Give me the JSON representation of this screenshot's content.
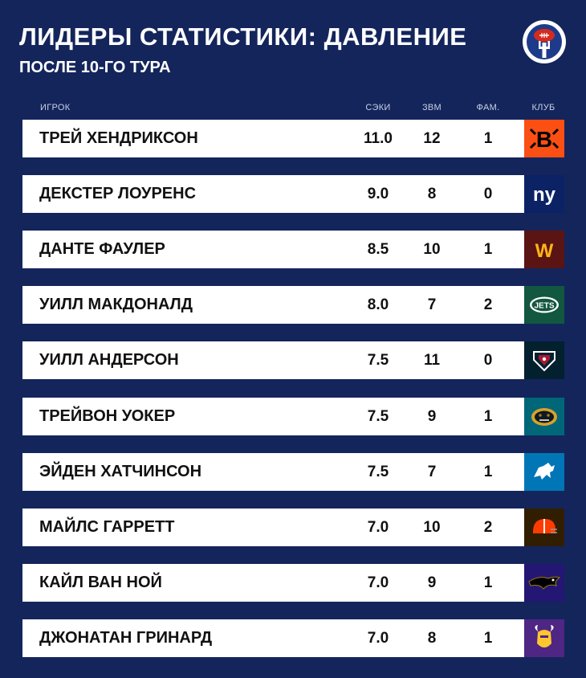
{
  "title": "ЛИДЕРЫ СТАТИСТИКИ: ДАВЛЕНИЕ",
  "subtitle": "ПОСЛЕ 10-ГО ТУРА",
  "brand_icon": "football-fork-logo",
  "colors": {
    "background": "#14255c",
    "row_background": "#ffffff",
    "header_text": "#c9d0e6"
  },
  "chart_data": {
    "type": "table",
    "columns": [
      "ИГРОК",
      "СЭКИ",
      "ЗВМ",
      "ФАМ.",
      "КЛУБ"
    ],
    "rows": [
      {
        "player": "ТРЕЙ ХЕНДРИКСОН",
        "sacks": "11.0",
        "qb_hits": "12",
        "forced_fumbles": "1",
        "team_icon": "bengals-logo",
        "team_color": "#fb4f14"
      },
      {
        "player": "ДЕКСТЕР ЛОУРЕНС",
        "sacks": "9.0",
        "qb_hits": "8",
        "forced_fumbles": "0",
        "team_icon": "giants-logo",
        "team_color": "#0b2265"
      },
      {
        "player": "ДАНТЕ ФАУЛЕР",
        "sacks": "8.5",
        "qb_hits": "10",
        "forced_fumbles": "1",
        "team_icon": "commanders-logo",
        "team_color": "#5a1414"
      },
      {
        "player": "УИЛЛ МАКДОНАЛД",
        "sacks": "8.0",
        "qb_hits": "7",
        "forced_fumbles": "2",
        "team_icon": "jets-logo",
        "team_color": "#125740"
      },
      {
        "player": "УИЛЛ АНДЕРСОН",
        "sacks": "7.5",
        "qb_hits": "11",
        "forced_fumbles": "0",
        "team_icon": "texans-logo",
        "team_color": "#03202f"
      },
      {
        "player": "ТРЕЙВОН УОКЕР",
        "sacks": "7.5",
        "qb_hits": "9",
        "forced_fumbles": "1",
        "team_icon": "jaguars-logo",
        "team_color": "#006778"
      },
      {
        "player": "ЭЙДЕН ХАТЧИНСОН",
        "sacks": "7.5",
        "qb_hits": "7",
        "forced_fumbles": "1",
        "team_icon": "lions-logo",
        "team_color": "#0076b6"
      },
      {
        "player": "МАЙЛС ГАРРЕТТ",
        "sacks": "7.0",
        "qb_hits": "10",
        "forced_fumbles": "2",
        "team_icon": "browns-logo",
        "team_color": "#311d00"
      },
      {
        "player": "КАЙЛ ВАН НОЙ",
        "sacks": "7.0",
        "qb_hits": "9",
        "forced_fumbles": "1",
        "team_icon": "ravens-logo",
        "team_color": "#241773"
      },
      {
        "player": "ДЖОНАТАН ГРИНАРД",
        "sacks": "7.0",
        "qb_hits": "8",
        "forced_fumbles": "1",
        "team_icon": "vikings-logo",
        "team_color": "#4f2683"
      }
    ]
  }
}
